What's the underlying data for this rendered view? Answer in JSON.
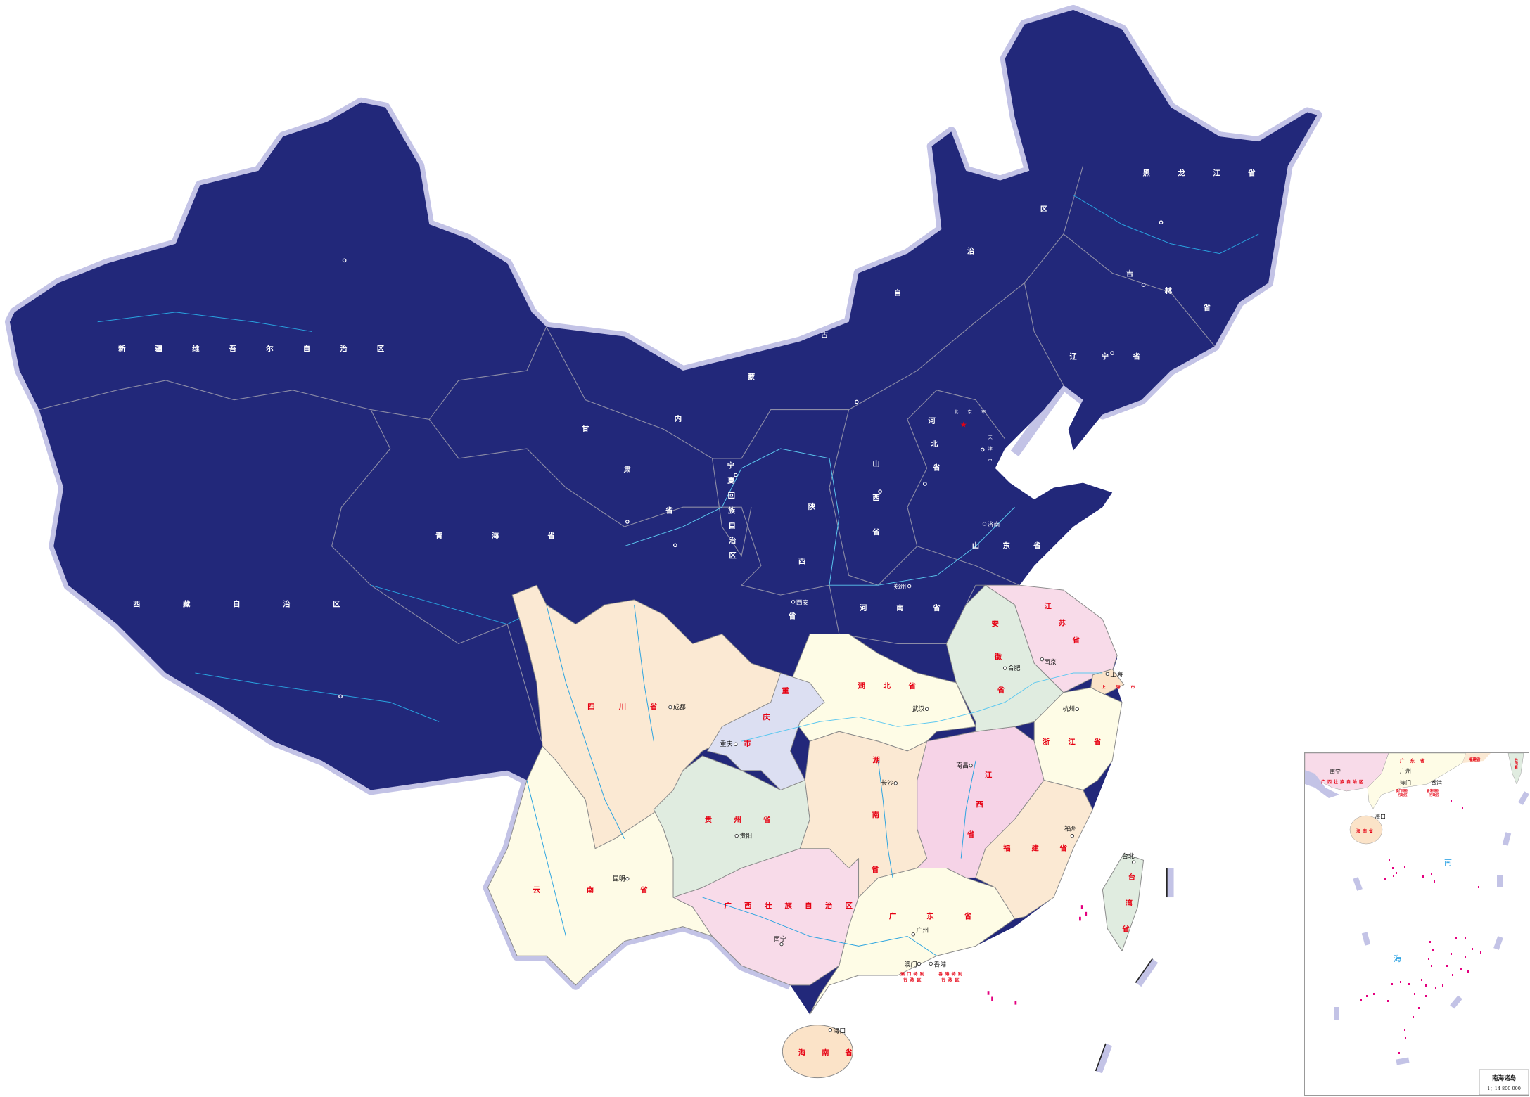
{
  "colors": {
    "north_fill": "#22287a",
    "halo": "#c3c3e6",
    "label_red": "#e60012",
    "river": "#29a3e0",
    "sea_label": "#1a9ae0",
    "island": "#e4007f",
    "sichuan": "#fbe9d3",
    "yunnan": "#fefbe6",
    "guizhou": "#e0ece0",
    "guangxi": "#f8dbe9",
    "guangdong": "#fefce6",
    "hunan": "#fbe9d3",
    "hubei": "#fefce6",
    "jiangxi": "#f6d3e7",
    "anhui": "#e0ece0",
    "jiangsu": "#f8dbe9",
    "zhejiang": "#fefce6",
    "fujian": "#fbe9d3",
    "chongqing": "#dcdff2",
    "shanghai": "#fbe3c8",
    "hainan": "#fbe3c8",
    "taiwan": "#e0ece0"
  },
  "labels": {
    "xinjiang": "新疆维吾尔自治区",
    "xizang": "西藏自治区",
    "qinghai": "青海省",
    "gansu": "甘肃省",
    "neimenggu": "内蒙古自治区",
    "heilongjiang": "黑龙江省",
    "jilin": "吉林省",
    "liaoning": "辽宁省",
    "beijing": "北京市",
    "tianjin": "天津市",
    "hebei": "河北省",
    "shanxi": "山西省",
    "shaanxi": "陕西省",
    "ningxia": "宁夏回族自治区",
    "henan": "河南省",
    "shandong": "山东省",
    "sichuan": "四川省",
    "chongqing": "重庆市",
    "hubei": "湖北省",
    "hunan": "湖南省",
    "guizhou": "贵州省",
    "yunnan": "云南省",
    "guangxi": "广西壮族自治区",
    "guangdong": "广东省",
    "jiangxi": "江西省",
    "anhui": "安徽省",
    "jiangsu": "江苏省",
    "shanghai": "上海市",
    "zhejiang": "浙江省",
    "fujian": "福建省",
    "taiwan": "台湾省",
    "hainan": "海南省",
    "hongkong_1": "香港特别",
    "hongkong_2": "行政区",
    "macau_1": "澳门特别",
    "macau_2": "行政区"
  },
  "cities": {
    "chengdu": "成都",
    "chongqing": "重庆",
    "wuhan": "武汉",
    "changsha": "长沙",
    "guiyang": "贵阳",
    "kunming": "昆明",
    "nanning": "南宁",
    "guangzhou": "广州",
    "macau": "澳门",
    "hongkong": "香港",
    "haikou": "海口",
    "nanchang": "南昌",
    "hefei": "合肥",
    "nanjing": "南京",
    "shanghai": "上海",
    "hangzhou": "杭州",
    "fuzhou": "福州",
    "taipei": "台北",
    "jinan": "济南",
    "zhengzhou": "郑州",
    "xian": "西安"
  },
  "inset": {
    "nanning": "南宁",
    "guangxi": "广西壮族自治区",
    "guangdong": "广东省",
    "guangzhou": "广州",
    "macau": "澳门",
    "hongkong": "香港",
    "macau_1": "澳门特别",
    "macau_2": "行政区",
    "hongkong_1": "香港特别",
    "hongkong_2": "行政区",
    "fujian": "福建省",
    "taiwan": "台湾省",
    "haikou": "海口",
    "hainan": "海南省",
    "sea_1": "南",
    "sea_2": "海",
    "title": "南海诸岛",
    "scale": "1：14 800 000"
  }
}
